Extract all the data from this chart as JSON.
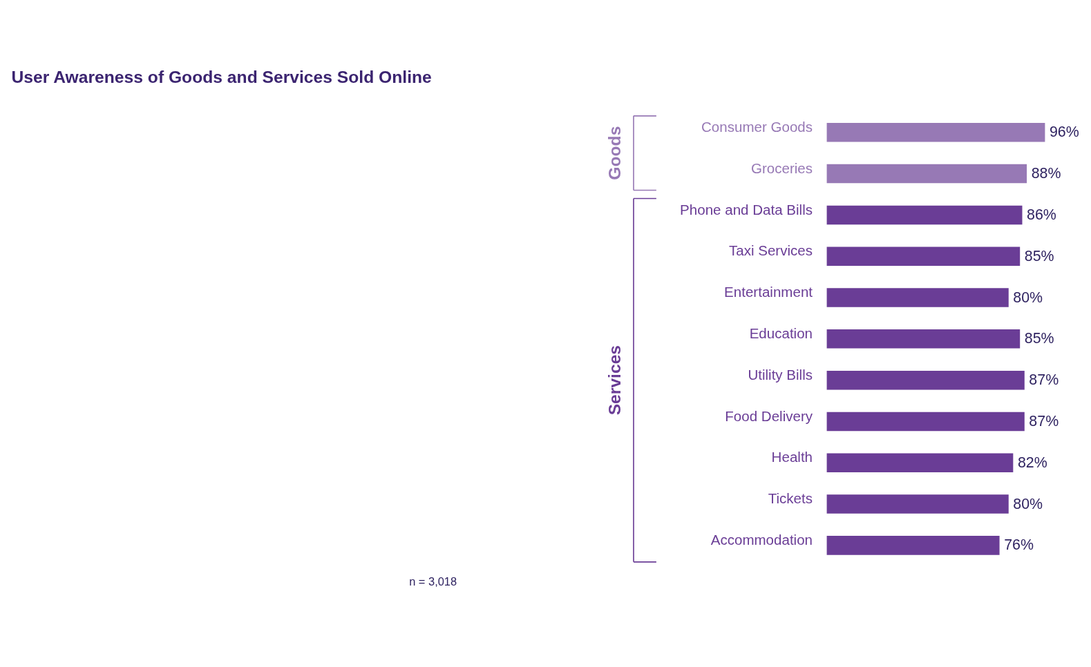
{
  "chart_data": {
    "type": "bar",
    "orientation": "horizontal",
    "title": "User Awareness of Goods and Services Sold Online",
    "categories": [
      "Consumer Goods",
      "Groceries",
      "Phone and Data Bills",
      "Taxi Services",
      "Entertainment",
      "Education",
      "Utility Bills",
      "Food Delivery",
      "Health",
      "Tickets",
      "Accommodation"
    ],
    "values": [
      96,
      88,
      86,
      85,
      80,
      85,
      87,
      87,
      82,
      80,
      76
    ],
    "colors": [
      "#9779b5",
      "#9779b5",
      "#6a3d96",
      "#6a3d96",
      "#6a3d96",
      "#6a3d96",
      "#6a3d96",
      "#6a3d96",
      "#6a3d96",
      "#6a3d96",
      "#6a3d96"
    ],
    "value_labels": [
      "96%",
      "88%",
      "86%",
      "85%",
      "80%",
      "85%",
      "87%",
      "87%",
      "82%",
      "80%",
      "76%"
    ],
    "annotations": [
      "Goods",
      "Services",
      "n = 3,018"
    ]
  }
}
